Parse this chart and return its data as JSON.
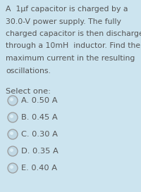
{
  "background_color": "#cce4ef",
  "question_lines": [
    "A  1μf capacitor is charged by a",
    "30.0-V power supply. The fully",
    "charged capacitor is then discharged",
    "through a 10mH  inductor. Find the",
    "maximum current in the resulting",
    "oscillations."
  ],
  "select_label": "Select one:",
  "options": [
    "A. 0.50 A",
    "B. 0.45 A",
    "C. 0.30 A",
    "D. 0.35 A",
    "E. 0.40 A"
  ],
  "text_color": "#555555",
  "circle_edge_color": "#999999",
  "circle_face_color": "#c0d8e4",
  "font_size_question": 7.8,
  "font_size_options": 8.2,
  "font_size_select": 8.2
}
